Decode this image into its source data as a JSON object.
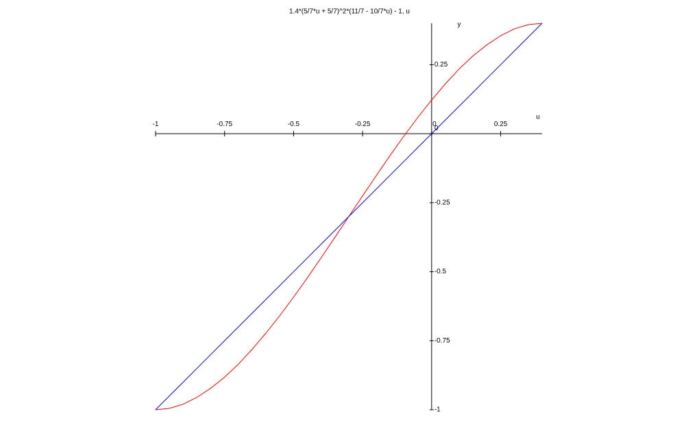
{
  "chart_data": {
    "type": "line",
    "title": "1.4*(5/7*u + 5/7)^2*(11/7 - 10/7*u) - 1, u",
    "x_label": "u",
    "y_label": "y",
    "x": [
      -1,
      -0.95,
      -0.9,
      -0.85,
      -0.8,
      -0.75,
      -0.7,
      -0.65,
      -0.6,
      -0.55,
      -0.5,
      -0.45,
      -0.4,
      -0.35,
      -0.3,
      -0.25,
      -0.2,
      -0.15,
      -0.1,
      -0.05,
      0,
      0.05,
      0.1,
      0.15,
      0.2,
      0.25,
      0.3,
      0.35,
      0.4
    ],
    "series": [
      {
        "color": "#ff0000",
        "values": [
          -1,
          -0.995,
          -0.98,
          -0.955,
          -0.922,
          -0.882,
          -0.835,
          -0.781,
          -0.722,
          -0.659,
          -0.592,
          -0.522,
          -0.449,
          -0.375,
          -0.3,
          -0.225,
          -0.151,
          -0.078,
          -0.008,
          0.059,
          0.122,
          0.181,
          0.235,
          0.282,
          0.322,
          0.355,
          0.38,
          0.395,
          0.4
        ]
      },
      {
        "color": "#0000ff",
        "values": [
          -1,
          -0.95,
          -0.9,
          -0.85,
          -0.8,
          -0.75,
          -0.7,
          -0.65,
          -0.6,
          -0.55,
          -0.5,
          -0.45,
          -0.4,
          -0.35,
          -0.3,
          -0.25,
          -0.2,
          -0.15,
          -0.1,
          -0.05,
          0,
          0.05,
          0.1,
          0.15,
          0.2,
          0.25,
          0.3,
          0.35,
          0.4
        ]
      }
    ],
    "xlim": [
      -1,
      0.4
    ],
    "ylim": [
      -1,
      0.4
    ],
    "xticks": [
      -1,
      -0.75,
      -0.5,
      -0.25,
      0,
      0.25
    ],
    "yticks": [
      0.25,
      0,
      -0.25,
      -0.5,
      -0.75,
      -1
    ]
  }
}
